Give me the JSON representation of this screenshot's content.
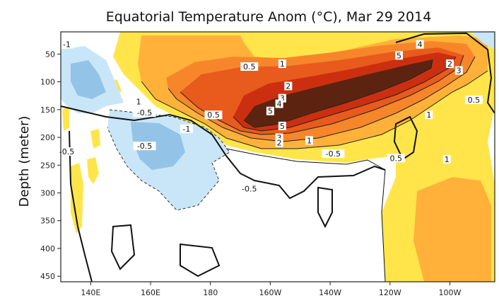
{
  "chart_data": {
    "type": "heatmap",
    "title": "Equatorial Temperature Anom (°C), Mar 29 2014",
    "xlabel": "",
    "ylabel": "Depth (meter)",
    "x_ticks": [
      "140E",
      "160E",
      "180",
      "160W",
      "140W",
      "120W",
      "100W"
    ],
    "x_tick_lon": [
      140,
      160,
      180,
      200,
      220,
      240,
      260
    ],
    "xlim_lon": [
      130,
      275
    ],
    "y_ticks": [
      "50",
      "100",
      "150",
      "200",
      "250",
      "300",
      "350",
      "400",
      "450"
    ],
    "y_tick_values": [
      50,
      100,
      150,
      200,
      250,
      300,
      350,
      400,
      450
    ],
    "ylim": [
      10,
      460
    ],
    "contour_levels": [
      -1,
      -0.5,
      0.5,
      1,
      2,
      3,
      4,
      5
    ],
    "colors": {
      "neg1": "#93c4e8",
      "neg05": "#c9e6f8",
      "pos05": "#ffe54a",
      "pos1": "#ffb13a",
      "pos2": "#f7862b",
      "pos3": "#e95a1d",
      "pos4": "#cc2f10",
      "pos5": "#5c2410"
    },
    "contour_labels": [
      {
        "text": "-1",
        "lon": 132,
        "depth": 35
      },
      {
        "text": "0.5",
        "lon": 193,
        "depth": 75
      },
      {
        "text": "1",
        "lon": 204,
        "depth": 70
      },
      {
        "text": "2",
        "lon": 206,
        "depth": 110
      },
      {
        "text": "3",
        "lon": 204,
        "depth": 132
      },
      {
        "text": "4",
        "lon": 203,
        "depth": 142
      },
      {
        "text": "5",
        "lon": 200,
        "depth": 155
      },
      {
        "text": "1",
        "lon": 156,
        "depth": 138
      },
      {
        "text": "-0.5",
        "lon": 158,
        "depth": 158
      },
      {
        "text": "0.5",
        "lon": 181,
        "depth": 162
      },
      {
        "text": "-1",
        "lon": 172,
        "depth": 187
      },
      {
        "text": "5",
        "lon": 204,
        "depth": 182
      },
      {
        "text": "3",
        "lon": 203,
        "depth": 203
      },
      {
        "text": "2",
        "lon": 203,
        "depth": 212
      },
      {
        "text": "1",
        "lon": 213,
        "depth": 208
      },
      {
        "text": "-0.5",
        "lon": 158,
        "depth": 218
      },
      {
        "text": "-0.5",
        "lon": 132,
        "depth": 228
      },
      {
        "text": "-0.5",
        "lon": 221,
        "depth": 232
      },
      {
        "text": "-0.5",
        "lon": 193,
        "depth": 295
      },
      {
        "text": "0.5",
        "lon": 242,
        "depth": 240
      },
      {
        "text": "1",
        "lon": 259,
        "depth": 242
      },
      {
        "text": "4",
        "lon": 250,
        "depth": 35
      },
      {
        "text": "5",
        "lon": 243,
        "depth": 55
      },
      {
        "text": "2",
        "lon": 260,
        "depth": 70
      },
      {
        "text": "3",
        "lon": 263,
        "depth": 82
      },
      {
        "text": "0.5",
        "lon": 268,
        "depth": 135
      },
      {
        "text": "1",
        "lon": 253,
        "depth": 162
      }
    ]
  }
}
